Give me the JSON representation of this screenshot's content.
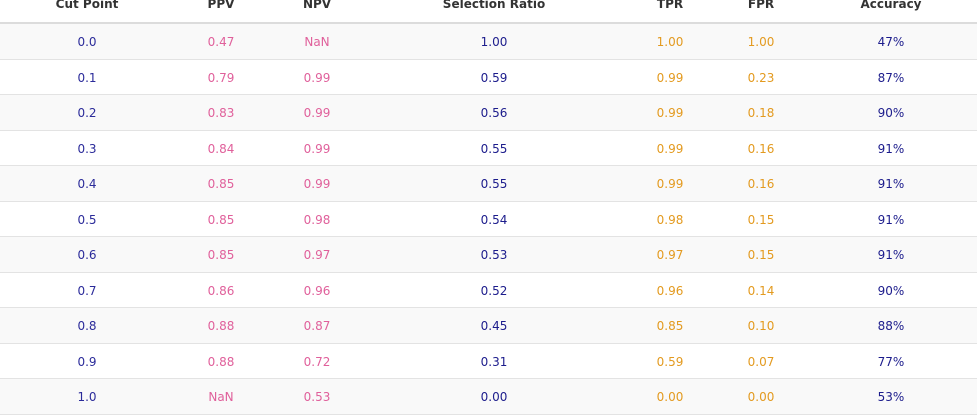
{
  "table": {
    "headers": [
      "Cut Point",
      "PPV",
      "NPV",
      "Selection Ratio",
      "TPR",
      "FPR",
      "Accuracy"
    ],
    "rows": [
      [
        "0.0",
        "0.47",
        "NaN",
        "1.00",
        "1.00",
        "1.00",
        "47%"
      ],
      [
        "0.1",
        "0.79",
        "0.99",
        "0.59",
        "0.99",
        "0.23",
        "87%"
      ],
      [
        "0.2",
        "0.83",
        "0.99",
        "0.56",
        "0.99",
        "0.18",
        "90%"
      ],
      [
        "0.3",
        "0.84",
        "0.99",
        "0.55",
        "0.99",
        "0.16",
        "91%"
      ],
      [
        "0.4",
        "0.85",
        "0.99",
        "0.55",
        "0.99",
        "0.16",
        "91%"
      ],
      [
        "0.5",
        "0.85",
        "0.98",
        "0.54",
        "0.98",
        "0.15",
        "91%"
      ],
      [
        "0.6",
        "0.85",
        "0.97",
        "0.53",
        "0.97",
        "0.15",
        "91%"
      ],
      [
        "0.7",
        "0.86",
        "0.96",
        "0.52",
        "0.96",
        "0.14",
        "90%"
      ],
      [
        "0.8",
        "0.88",
        "0.87",
        "0.45",
        "0.85",
        "0.10",
        "88%"
      ],
      [
        "0.9",
        "0.88",
        "0.72",
        "0.31",
        "0.59",
        "0.07",
        "77%"
      ],
      [
        "1.0",
        "NaN",
        "0.53",
        "0.00",
        "0.00",
        "0.00",
        "53%"
      ]
    ]
  },
  "colors": {
    "cut_point": "#2b2b9a",
    "ppv": "#e0609b",
    "npv": "#e0609b",
    "selection_ratio": "#1c1c8c",
    "tpr": "#e39a1f",
    "fpr": "#e39a1f",
    "accuracy": "#1c1c8c",
    "stripe": "#f9f9f9"
  }
}
